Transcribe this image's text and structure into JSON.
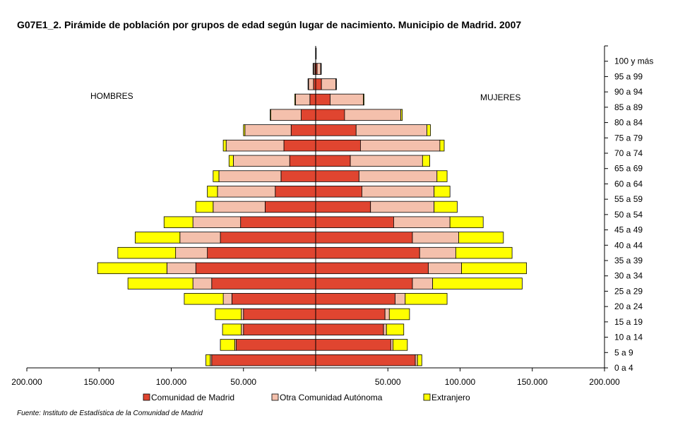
{
  "chart_data": {
    "type": "bar",
    "orientation": "horizontal-pyramid",
    "title": "G07E1_2.  Pirámide de población por grupos de edad según lugar de nacimiento. Municipio de Madrid. 2007",
    "source": "Fuente: Instituto de Estadística de la Comunidad de Madrid",
    "left_label": "HOMBRES",
    "right_label": "MUJERES",
    "categories": [
      "0 a 4",
      "5 a 9",
      "10 a 14",
      "15 a 19",
      "20 a 24",
      "25 a 29",
      "30 a 34",
      "35 a 39",
      "40 a 44",
      "45 a 49",
      "50 a 54",
      "55 a 59",
      "60 a 64",
      "65 a 69",
      "70 a 74",
      "75 a 79",
      "80 a 84",
      "85 a 89",
      "90 a 94",
      "95 a 99",
      "100 y más"
    ],
    "x_ticks": [
      "200.000",
      "150.000",
      "100.000",
      "50.000",
      "",
      "50.000",
      "100.000",
      "150.000",
      "200.000"
    ],
    "xlim": [
      -200000,
      200000
    ],
    "stacked": true,
    "colors": {
      "Comunidad de Madrid": "#e04530",
      "Otra Comunidad Autónoma": "#f4c0ac",
      "Extranjero": "#ffff00",
      "outline": "#000000"
    },
    "legend_position": "bottom",
    "series": [
      {
        "name": "Comunidad de Madrid",
        "men": [
          72000,
          55000,
          50000,
          50000,
          58000,
          72000,
          83000,
          75000,
          66000,
          52000,
          35000,
          28000,
          24000,
          18000,
          22000,
          17000,
          10000,
          4000,
          1500,
          500,
          100
        ],
        "women": [
          69000,
          52000,
          47000,
          48000,
          55000,
          67000,
          78000,
          72000,
          67000,
          54000,
          38000,
          32000,
          30000,
          24000,
          31000,
          28000,
          20000,
          10000,
          4000,
          1000,
          100
        ]
      },
      {
        "name": "Otra Comunidad Autónoma",
        "men": [
          1000,
          1000,
          1500,
          1500,
          6000,
          13000,
          20000,
          22000,
          28000,
          33000,
          36000,
          40000,
          43000,
          39000,
          40000,
          32000,
          21000,
          10000,
          3500,
          1000,
          0
        ],
        "women": [
          1500,
          1500,
          2000,
          3000,
          7000,
          14000,
          23000,
          25000,
          32000,
          39000,
          44000,
          50000,
          54000,
          50000,
          55000,
          49000,
          39000,
          23000,
          10000,
          2500,
          0
        ]
      },
      {
        "name": "Extranjero",
        "men": [
          3000,
          10000,
          13000,
          18000,
          27000,
          45000,
          48000,
          40000,
          31000,
          20000,
          12000,
          7000,
          4000,
          3000,
          2000,
          1000,
          500,
          500,
          300,
          300,
          0
        ],
        "women": [
          3000,
          10000,
          12000,
          14000,
          29000,
          62000,
          45000,
          39000,
          31000,
          23000,
          16000,
          11000,
          7000,
          5000,
          3000,
          2500,
          1000,
          500,
          300,
          300,
          0
        ]
      }
    ]
  }
}
